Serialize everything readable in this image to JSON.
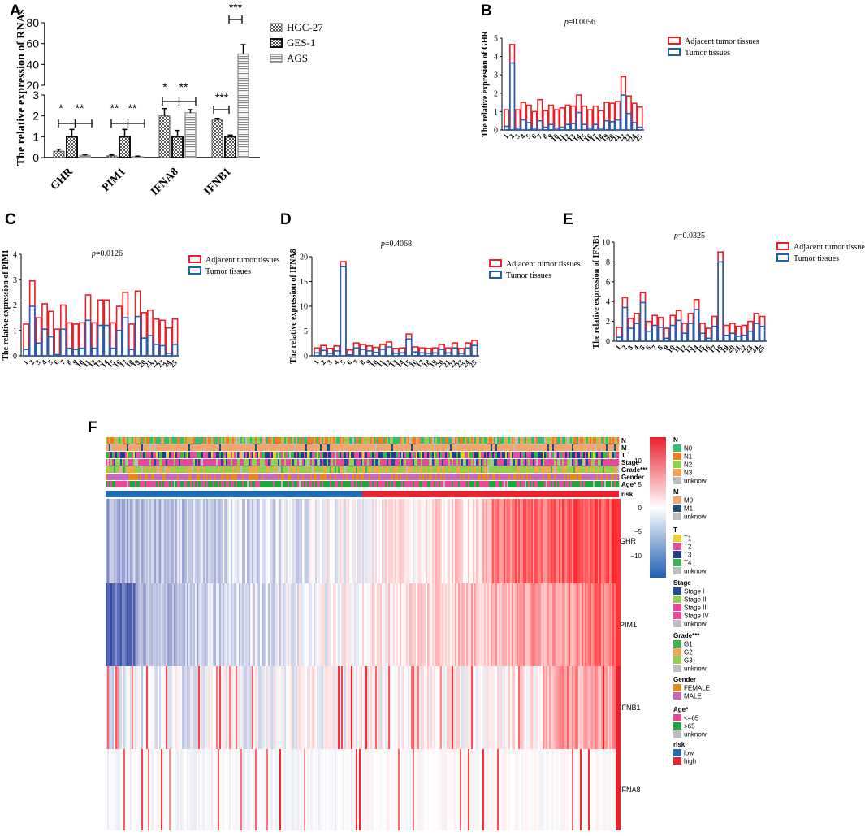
{
  "panels": {
    "A": "A",
    "B": "B",
    "C": "C",
    "D": "D",
    "E": "E",
    "F": "F"
  },
  "chart_data": [
    {
      "id": "A",
      "type": "bar",
      "ylabel": "The relative expression of RNAs",
      "categories": [
        "GHR",
        "PIM1",
        "IFNA8",
        "IFNB1"
      ],
      "series": [
        {
          "name": "HGC-27",
          "values": [
            0.3,
            0.08,
            2.0,
            1.8
          ],
          "errors": [
            0.1,
            0.05,
            0.35,
            0.08
          ]
        },
        {
          "name": "GES-1",
          "values": [
            1.0,
            1.0,
            1.0,
            1.0
          ],
          "errors": [
            0.35,
            0.35,
            0.3,
            0.08
          ]
        },
        {
          "name": "AGS",
          "values": [
            0.1,
            0.04,
            2.15,
            50
          ],
          "errors": [
            0.04,
            0.03,
            0.15,
            9
          ]
        }
      ],
      "lower_ticks": [
        "0",
        "1",
        "2",
        "3"
      ],
      "upper_ticks": [
        "20",
        "40",
        "60",
        "80"
      ],
      "lower_ylim": [
        0,
        3
      ],
      "upper_ylim": [
        20,
        80
      ],
      "significance": [
        {
          "category": "GHR",
          "labels": [
            "*",
            "**"
          ]
        },
        {
          "category": "PIM1",
          "labels": [
            "**",
            "**"
          ]
        },
        {
          "category": "IFNA8",
          "labels": [
            "*",
            "**"
          ]
        },
        {
          "category": "IFNB1",
          "labels": [
            "***",
            "***"
          ]
        }
      ]
    },
    {
      "id": "B",
      "type": "bar",
      "pvalue_prefix": "p",
      "pvalue": "=0.0056",
      "ylabel": "The relative expresion of GHR",
      "yticks": [
        "0",
        "1",
        "2",
        "3",
        "4",
        "5"
      ],
      "ylim": [
        0,
        5
      ],
      "legend": [
        "Adjacent tumor tissues",
        "Tumor tissues"
      ],
      "categories": [
        "1",
        "2",
        "3",
        "4",
        "5",
        "6",
        "7",
        "8",
        "9",
        "10",
        "11",
        "12",
        "13",
        "14",
        "15",
        "16",
        "17",
        "18",
        "19",
        "20",
        "21",
        "22",
        "23",
        "24",
        "25"
      ],
      "adjacent": [
        1.1,
        4.65,
        1.1,
        1.5,
        1.35,
        1.0,
        1.65,
        1.05,
        1.35,
        1.1,
        1.2,
        1.35,
        1.3,
        1.9,
        1.3,
        1.1,
        1.3,
        1.05,
        1.5,
        1.45,
        1.55,
        2.9,
        1.85,
        1.45,
        1.25
      ],
      "tumor": [
        0.2,
        3.65,
        0.1,
        0.55,
        0.4,
        0.1,
        0.5,
        0.15,
        0.3,
        0.1,
        0.15,
        0.3,
        0.35,
        0.95,
        0.3,
        0.1,
        0.3,
        0.1,
        0.5,
        0.45,
        0.55,
        1.9,
        0.9,
        0.4,
        0.15
      ]
    },
    {
      "id": "C",
      "type": "bar",
      "pvalue_prefix": "p",
      "pvalue": "=0.0126",
      "ylabel": "The relative expression of PIM1",
      "yticks": [
        "0",
        "1",
        "2",
        "3",
        "4"
      ],
      "ylim": [
        0,
        4
      ],
      "legend": [
        "Adjacent tumor tissues",
        "Tumor tissues"
      ],
      "categories": [
        "1",
        "2",
        "3",
        "4",
        "5",
        "6",
        "7",
        "8",
        "9",
        "10",
        "11",
        "12",
        "13",
        "14",
        "15",
        "16",
        "17",
        "18",
        "19",
        "20",
        "21",
        "22",
        "23",
        "24",
        "25"
      ],
      "adjacent": [
        1.25,
        2.95,
        1.5,
        2.05,
        1.75,
        1.05,
        2.0,
        1.3,
        1.25,
        1.3,
        2.4,
        1.3,
        2.2,
        2.2,
        1.3,
        1.95,
        2.5,
        1.25,
        2.55,
        1.7,
        1.8,
        1.45,
        1.4,
        1.1,
        1.45
      ],
      "tumor": [
        0.25,
        1.95,
        0.5,
        1.05,
        0.75,
        0.05,
        1.05,
        0.3,
        0.25,
        0.3,
        1.4,
        0.3,
        1.2,
        1.2,
        0.3,
        1.0,
        1.5,
        0.25,
        1.55,
        0.7,
        0.8,
        0.45,
        0.4,
        0.1,
        0.45
      ]
    },
    {
      "id": "D",
      "type": "bar",
      "pvalue_prefix": "p",
      "pvalue": "=0.4068",
      "ylabel": "The relative expression of IFNA8",
      "yticks": [
        "0",
        "5",
        "10",
        "15",
        "20"
      ],
      "ylim": [
        0,
        20
      ],
      "legend": [
        "Adjacent tumor tissues",
        "Tumor tissues"
      ],
      "categories": [
        "1",
        "2",
        "3",
        "4",
        "5",
        "6",
        "7",
        "8",
        "9",
        "10",
        "11",
        "12",
        "13",
        "14",
        "15",
        "16",
        "17",
        "18",
        "19",
        "20",
        "21",
        "22",
        "23",
        "24",
        "25"
      ],
      "adjacent": [
        1.6,
        2.1,
        1.5,
        2.0,
        19.0,
        1.2,
        2.6,
        2.3,
        2.0,
        1.7,
        2.3,
        2.8,
        1.5,
        1.6,
        4.4,
        1.8,
        1.6,
        1.5,
        1.6,
        2.3,
        1.6,
        2.6,
        1.5,
        2.6,
        3.1
      ],
      "tumor": [
        0.6,
        1.1,
        0.5,
        1.0,
        18.0,
        0.2,
        1.6,
        1.3,
        1.0,
        0.7,
        1.3,
        1.8,
        0.5,
        0.6,
        3.4,
        0.8,
        0.6,
        0.5,
        0.6,
        1.3,
        0.6,
        1.6,
        0.5,
        1.6,
        2.1
      ]
    },
    {
      "id": "E",
      "type": "bar",
      "pvalue_prefix": "p",
      "pvalue": "=0.0325",
      "ylabel": "The relative expression of IFNB1",
      "yticks": [
        "0",
        "2",
        "4",
        "6",
        "8",
        "10"
      ],
      "ylim": [
        0,
        10
      ],
      "legend": [
        "Adjacent tumor tissues",
        "Tumor tissues"
      ],
      "categories": [
        "1",
        "2",
        "3",
        "4",
        "5",
        "6",
        "7",
        "8",
        "9",
        "10",
        "11",
        "12",
        "13",
        "14",
        "15",
        "16",
        "17",
        "18",
        "19",
        "20",
        "21",
        "22",
        "23",
        "24",
        "25"
      ],
      "adjacent": [
        1.4,
        4.4,
        2.3,
        2.8,
        4.9,
        2.0,
        2.6,
        2.4,
        1.3,
        2.6,
        3.1,
        1.8,
        2.8,
        4.2,
        1.8,
        1.3,
        2.5,
        9.0,
        1.6,
        1.8,
        1.5,
        1.6,
        2.0,
        2.8,
        2.5
      ],
      "tumor": [
        0.4,
        3.4,
        1.3,
        1.8,
        3.9,
        1.0,
        1.6,
        1.4,
        0.3,
        1.6,
        2.1,
        0.8,
        1.8,
        3.2,
        0.8,
        0.3,
        1.5,
        8.0,
        0.6,
        0.8,
        0.5,
        0.6,
        1.0,
        1.8,
        1.5
      ]
    },
    {
      "id": "F",
      "type": "heatmap",
      "rows": [
        "GHR",
        "PIM1",
        "IFNB1",
        "IFNA8"
      ],
      "annotation_tracks": [
        "N",
        "M",
        "T",
        "Stage",
        "Grade***",
        "Gender",
        "Age*",
        "risk"
      ],
      "risk_split": {
        "low_fraction": 0.5,
        "high_fraction": 0.5
      },
      "colorbar_ticks": [
        "10",
        "5",
        "0",
        "−5",
        "−10"
      ],
      "colorbar_range": [
        -12,
        12
      ],
      "legend_groups": [
        {
          "title": "N",
          "items": [
            {
              "label": "N0",
              "color": "#2fbf71"
            },
            {
              "label": "N1",
              "color": "#f47c20"
            },
            {
              "label": "N2",
              "color": "#8fd14f"
            },
            {
              "label": "N3",
              "color": "#f6a04d"
            },
            {
              "label": "unknow",
              "color": "#bdbdbd"
            }
          ]
        },
        {
          "title": "M",
          "items": [
            {
              "label": "M0",
              "color": "#f5a46a"
            },
            {
              "label": "M1",
              "color": "#1f4e79"
            },
            {
              "label": "unknow",
              "color": "#bdbdbd"
            }
          ]
        },
        {
          "title": "T",
          "items": [
            {
              "label": "T1",
              "color": "#e6d42a"
            },
            {
              "label": "T2",
              "color": "#e04fa0"
            },
            {
              "label": "T3",
              "color": "#233a8c"
            },
            {
              "label": "T4",
              "color": "#3cb44b"
            },
            {
              "label": "unknow",
              "color": "#bdbdbd"
            }
          ]
        },
        {
          "title": "Stage",
          "items": [
            {
              "label": "Stage I",
              "color": "#1f4e9c"
            },
            {
              "label": "Stage II",
              "color": "#8fd14f"
            },
            {
              "label": "Stage III",
              "color": "#e8479a"
            },
            {
              "label": "Stage IV",
              "color": "#e8479a"
            },
            {
              "label": "unknow",
              "color": "#bdbdbd"
            }
          ]
        },
        {
          "title": "Grade***",
          "items": [
            {
              "label": "G1",
              "color": "#3cb44b"
            },
            {
              "label": "G2",
              "color": "#f0a848"
            },
            {
              "label": "G3",
              "color": "#8fd14f"
            },
            {
              "label": "unknow",
              "color": "#bdbdbd"
            }
          ]
        },
        {
          "title": "Gender",
          "items": [
            {
              "label": "FEMALE",
              "color": "#e38a1a"
            },
            {
              "label": "MALE",
              "color": "#c867b9"
            }
          ]
        },
        {
          "title": "Age*",
          "items": [
            {
              "label": "<=65",
              "color": "#e8479a"
            },
            {
              "label": ">65",
              "color": "#1fa83a"
            },
            {
              "label": "unknow",
              "color": "#bdbdbd"
            }
          ]
        },
        {
          "title": "risk",
          "items": [
            {
              "label": "low",
              "color": "#1f6db5"
            },
            {
              "label": "high",
              "color": "#e8222e"
            }
          ]
        }
      ]
    }
  ],
  "colors": {
    "adjacent": "#ee1c25",
    "tumor": "#1f5fb4",
    "heat_high": "#e8222e",
    "heat_low": "#3a4fa3"
  }
}
